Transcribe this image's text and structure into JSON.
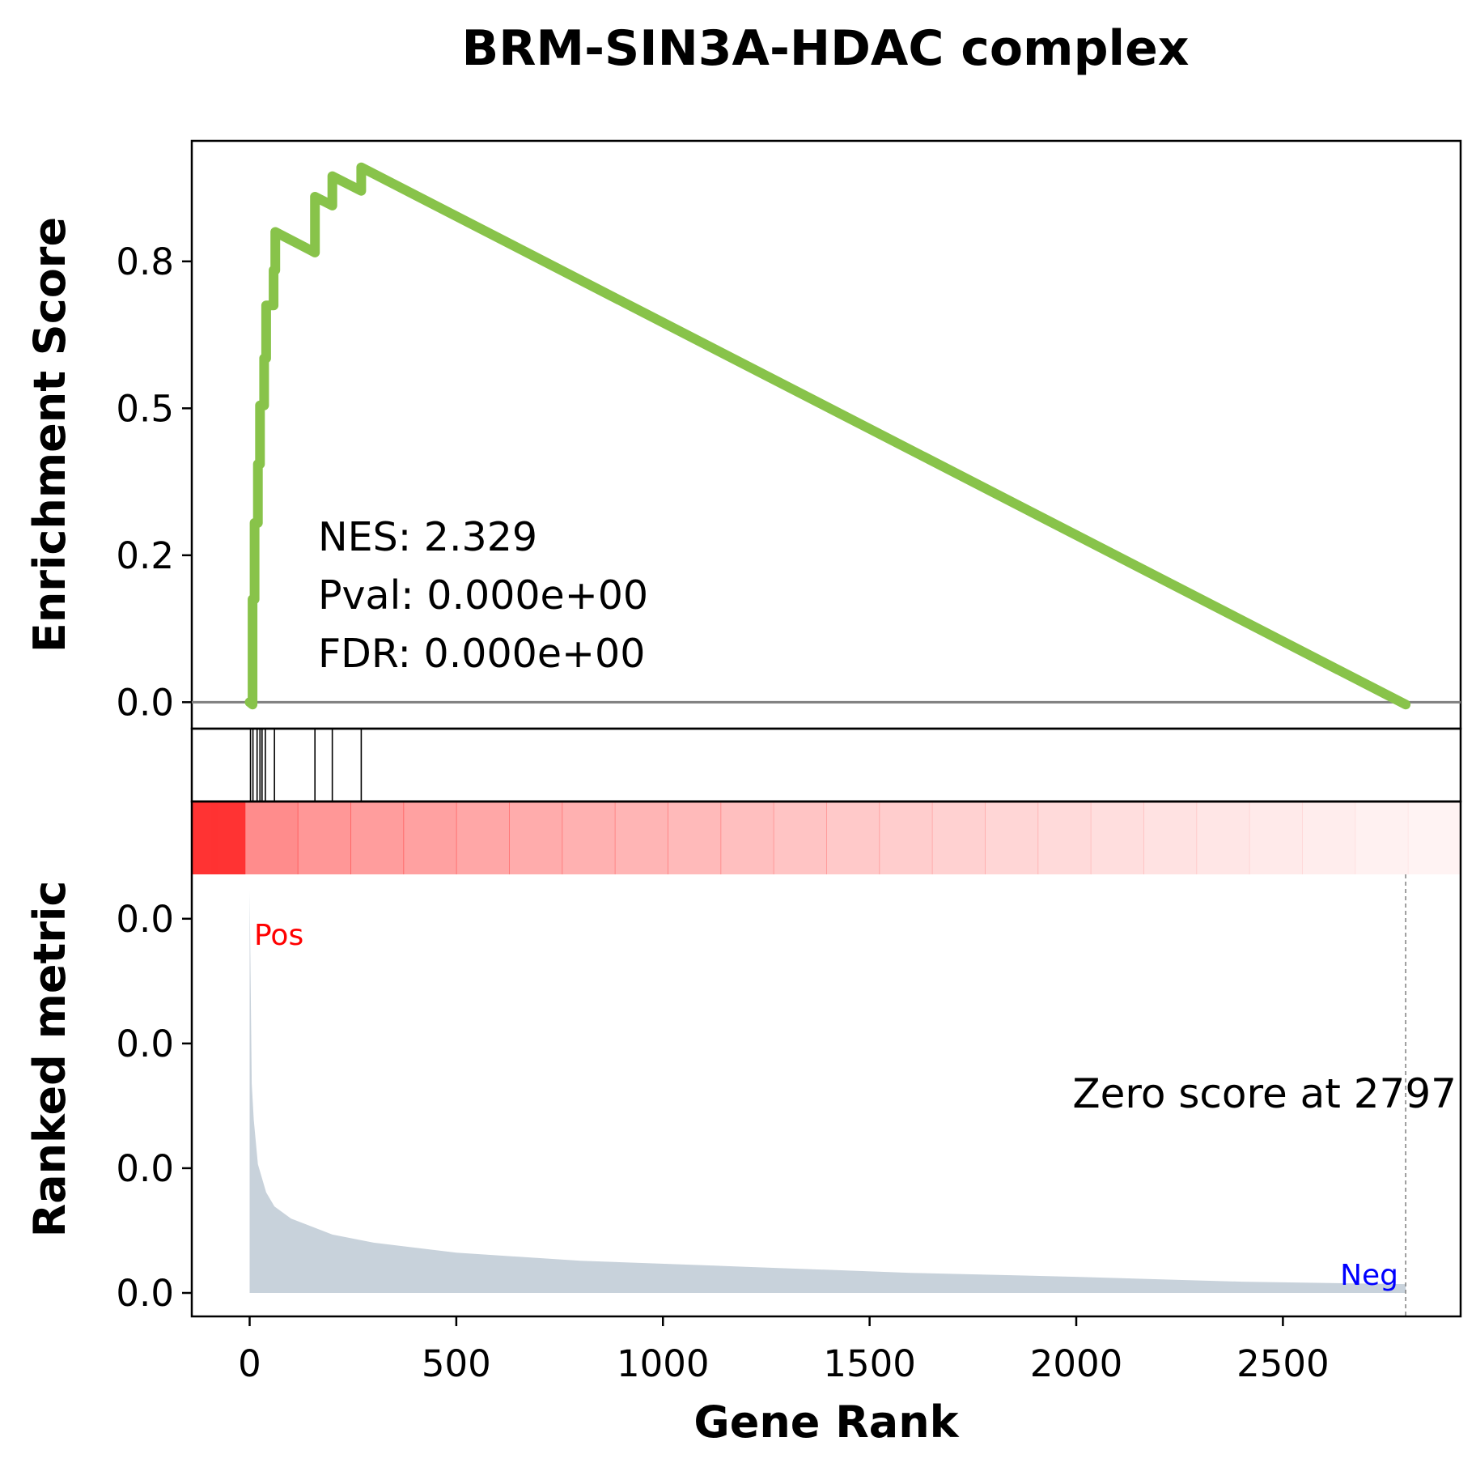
{
  "chart_data": {
    "type": "line",
    "title": "BRM-SIN3A-HDAC complex",
    "xlabel": "Gene Rank",
    "ylabel_top": "Enrichment Score",
    "ylabel_bottom": "Ranked metric",
    "xlim": [
      -140,
      2930
    ],
    "ylim_es": [
      -0.045,
      0.955
    ],
    "x_ticks": [
      0,
      500,
      1000,
      1500,
      2000,
      2500
    ],
    "y_ticks_es": [
      0.0,
      0.25,
      0.5,
      0.75
    ],
    "y_tick_labels_es": [
      "0.0",
      "0.2",
      "0.5",
      "0.8"
    ],
    "y_tick_labels_metric": [
      "0.0",
      "0.0",
      "0.0",
      "0.0"
    ],
    "y_tick_fracs_metric": [
      0.0,
      0.31,
      0.62,
      0.93
    ],
    "es_line": {
      "color": "#88c34a",
      "points": [
        [
          0,
          0.0
        ],
        [
          7,
          -0.004
        ],
        [
          7,
          0.175
        ],
        [
          12,
          0.175
        ],
        [
          12,
          0.305
        ],
        [
          20,
          0.305
        ],
        [
          20,
          0.405
        ],
        [
          25,
          0.405
        ],
        [
          25,
          0.505
        ],
        [
          35,
          0.505
        ],
        [
          35,
          0.585
        ],
        [
          40,
          0.585
        ],
        [
          40,
          0.675
        ],
        [
          58,
          0.675
        ],
        [
          58,
          0.735
        ],
        [
          62,
          0.735
        ],
        [
          62,
          0.8
        ],
        [
          158,
          0.765
        ],
        [
          158,
          0.86
        ],
        [
          200,
          0.845
        ],
        [
          200,
          0.895
        ],
        [
          270,
          0.87
        ],
        [
          270,
          0.91
        ],
        [
          2797,
          -0.004
        ]
      ]
    },
    "hits": [
      2,
      8,
      18,
      25,
      30,
      38,
      60,
      158,
      200,
      270
    ],
    "heatmap_color": "#ff3333",
    "metric_color": "#c8d2db",
    "metric_decay": [
      [
        0,
        1.0
      ],
      [
        5,
        0.52
      ],
      [
        10,
        0.43
      ],
      [
        20,
        0.32
      ],
      [
        40,
        0.25
      ],
      [
        60,
        0.215
      ],
      [
        100,
        0.185
      ],
      [
        200,
        0.145
      ],
      [
        300,
        0.125
      ],
      [
        500,
        0.1
      ],
      [
        800,
        0.08
      ],
      [
        1200,
        0.065
      ],
      [
        1600,
        0.05
      ],
      [
        2000,
        0.04
      ],
      [
        2400,
        0.028
      ],
      [
        2797,
        0.022
      ]
    ],
    "zero_score_x": 2797,
    "stats": {
      "nes": "NES: 2.329",
      "pval": "Pval: 0.000e+00",
      "fdr": "FDR: 0.000e+00"
    },
    "zero_score_label": "Zero score at 2797",
    "pos_label": "Pos",
    "neg_label": "Neg",
    "pos_color": "#ff0000",
    "neg_color": "#0000ff"
  }
}
